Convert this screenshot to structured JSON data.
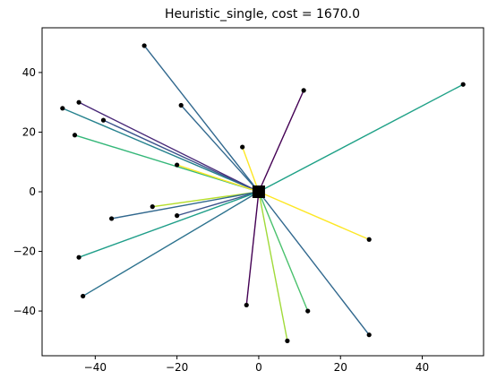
{
  "chart_data": {
    "type": "scatter",
    "title": "Heuristic_single, cost = 1670.0",
    "xlabel": "",
    "ylabel": "",
    "xlim": [
      -53,
      55
    ],
    "ylim": [
      -55,
      55
    ],
    "xticks": [
      -40,
      -20,
      0,
      20,
      40
    ],
    "yticks": [
      -40,
      -20,
      0,
      20,
      40
    ],
    "grid": false,
    "depot": {
      "x": 0,
      "y": 0,
      "color": "#000000"
    },
    "points": [
      {
        "x": -28,
        "y": 49,
        "color": "#31688e"
      },
      {
        "x": -44,
        "y": 30,
        "color": "#482878"
      },
      {
        "x": -48,
        "y": 28,
        "color": "#26828e"
      },
      {
        "x": -19,
        "y": 29,
        "color": "#31688e"
      },
      {
        "x": -38,
        "y": 24,
        "color": "#3b528b"
      },
      {
        "x": -45,
        "y": 19,
        "color": "#35b779"
      },
      {
        "x": -20,
        "y": 9,
        "color": "#fde725"
      },
      {
        "x": -4,
        "y": 15,
        "color": "#fde725"
      },
      {
        "x": 11,
        "y": 34,
        "color": "#440154"
      },
      {
        "x": 50,
        "y": 36,
        "color": "#1fa187"
      },
      {
        "x": -26,
        "y": -5,
        "color": "#b5de2b"
      },
      {
        "x": -36,
        "y": -9,
        "color": "#31688e"
      },
      {
        "x": -20,
        "y": -8,
        "color": "#3b528b"
      },
      {
        "x": -44,
        "y": -22,
        "color": "#1f9e89"
      },
      {
        "x": -43,
        "y": -35,
        "color": "#2c728e"
      },
      {
        "x": -3,
        "y": -38,
        "color": "#440154"
      },
      {
        "x": 7,
        "y": -50,
        "color": "#a0da39"
      },
      {
        "x": 12,
        "y": -40,
        "color": "#4ac16d"
      },
      {
        "x": 27,
        "y": -16,
        "color": "#fde725"
      },
      {
        "x": 27,
        "y": -48,
        "color": "#31688e"
      }
    ]
  }
}
